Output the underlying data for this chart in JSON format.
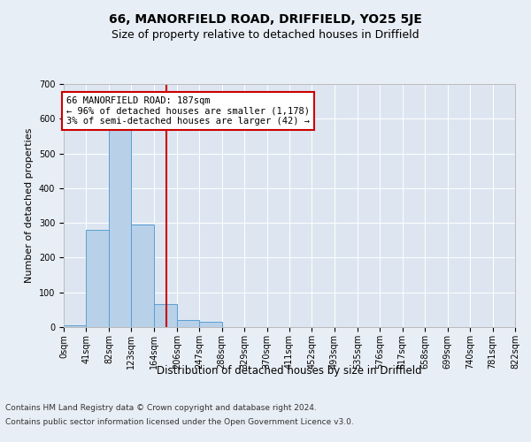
{
  "title": "66, MANORFIELD ROAD, DRIFFIELD, YO25 5JE",
  "subtitle": "Size of property relative to detached houses in Driffield",
  "xlabel": "Distribution of detached houses by size in Driffield",
  "ylabel": "Number of detached properties",
  "bar_edges": [
    0,
    41,
    82,
    123,
    164,
    206,
    247,
    288,
    329,
    370,
    411,
    452,
    493,
    535,
    576,
    617,
    658,
    699,
    740,
    781,
    822
  ],
  "bar_heights": [
    5,
    280,
    575,
    295,
    65,
    20,
    15,
    0,
    0,
    0,
    0,
    0,
    0,
    0,
    0,
    0,
    0,
    0,
    0,
    0
  ],
  "bar_color": "#b8d0e8",
  "bar_edge_color": "#5a9fd4",
  "property_size": 187,
  "vline_color": "#cc0000",
  "annotation_text": "66 MANORFIELD ROAD: 187sqm\n← 96% of detached houses are smaller (1,178)\n3% of semi-detached houses are larger (42) →",
  "annotation_box_color": "#cc0000",
  "ylim": [
    0,
    700
  ],
  "yticks": [
    0,
    100,
    200,
    300,
    400,
    500,
    600,
    700
  ],
  "background_color": "#e8eef5",
  "plot_bg_color": "#dde6f0",
  "grid_color": "#ffffff",
  "footer1": "Contains HM Land Registry data © Crown copyright and database right 2024.",
  "footer2": "Contains public sector information licensed under the Open Government Licence v3.0.",
  "title_fontsize": 10,
  "subtitle_fontsize": 9,
  "xlabel_fontsize": 8.5,
  "ylabel_fontsize": 8,
  "tick_fontsize": 7,
  "annotation_fontsize": 7.5,
  "footer_fontsize": 6.5
}
